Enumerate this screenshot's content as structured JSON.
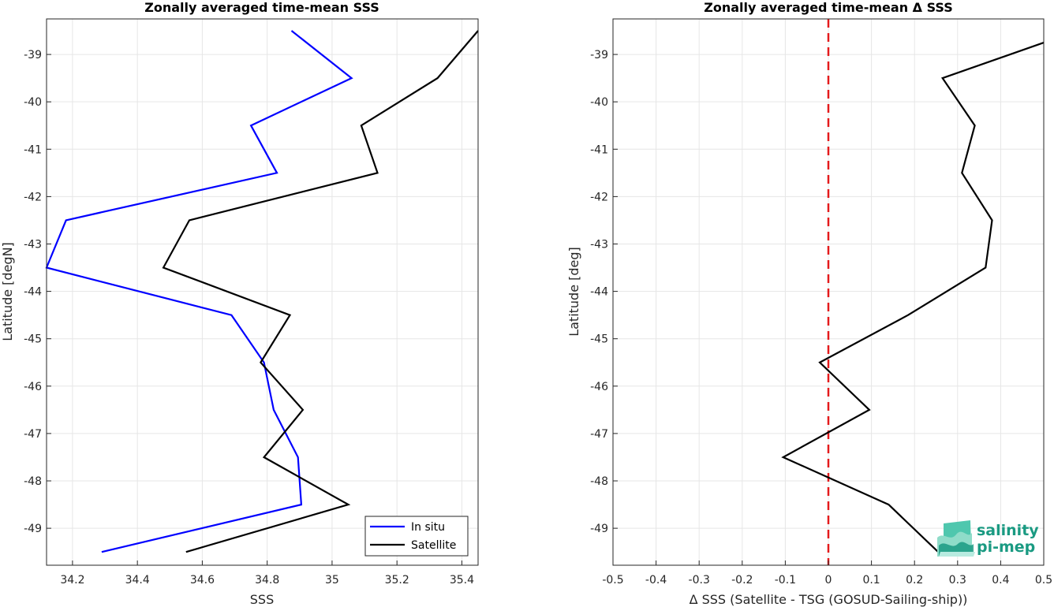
{
  "chart_data": [
    {
      "type": "line",
      "title": "Zonally averaged time-mean SSS",
      "xlabel": "SSS",
      "ylabel": "Latitude [degN]",
      "xlim": [
        34.12,
        35.45
      ],
      "ylim": [
        -49.78,
        -38.25
      ],
      "xticks": [
        "34.2",
        "34.4",
        "34.6",
        "34.8",
        "35",
        "35.2",
        "35.4"
      ],
      "yticks": [
        "-39",
        "-40",
        "-41",
        "-42",
        "-43",
        "-44",
        "-45",
        "-46",
        "-47",
        "-48",
        "-49"
      ],
      "grid": true,
      "legend": "bottom-right",
      "series": [
        {
          "name": "In situ",
          "color": "#0000ff",
          "points": [
            {
              "x": 34.875,
              "y": -38.5
            },
            {
              "x": 35.06,
              "y": -39.5
            },
            {
              "x": 34.75,
              "y": -40.5
            },
            {
              "x": 34.83,
              "y": -41.5
            },
            {
              "x": 34.18,
              "y": -42.5
            },
            {
              "x": 34.12,
              "y": -43.5
            },
            {
              "x": 34.69,
              "y": -44.5
            },
            {
              "x": 34.79,
              "y": -45.5
            },
            {
              "x": 34.82,
              "y": -46.5
            },
            {
              "x": 34.895,
              "y": -47.5
            },
            {
              "x": 34.905,
              "y": -48.5
            },
            {
              "x": 34.29,
              "y": -49.5
            }
          ]
        },
        {
          "name": "Satellite",
          "color": "#000000",
          "points": [
            {
              "x": 35.45,
              "y": -38.5
            },
            {
              "x": 35.325,
              "y": -39.5
            },
            {
              "x": 35.09,
              "y": -40.5
            },
            {
              "x": 35.14,
              "y": -41.5
            },
            {
              "x": 34.56,
              "y": -42.5
            },
            {
              "x": 34.48,
              "y": -43.5
            },
            {
              "x": 34.87,
              "y": -44.5
            },
            {
              "x": 34.78,
              "y": -45.5
            },
            {
              "x": 34.91,
              "y": -46.5
            },
            {
              "x": 34.79,
              "y": -47.5
            },
            {
              "x": 35.05,
              "y": -48.5
            },
            {
              "x": 34.55,
              "y": -49.5
            }
          ]
        }
      ]
    },
    {
      "type": "line",
      "title": "Zonally averaged time-mean Δ SSS",
      "xlabel": "Δ SSS (Satellite - TSG (GOSUD-Sailing-ship))",
      "ylabel": "Latitude [deg]",
      "xlim": [
        -0.5,
        0.5
      ],
      "ylim": [
        -49.78,
        -38.25
      ],
      "xticks": [
        "-0.5",
        "-0.4",
        "-0.3",
        "-0.2",
        "-0.1",
        "0",
        "0.1",
        "0.2",
        "0.3",
        "0.4",
        "0.5"
      ],
      "yticks": [
        "-39",
        "-40",
        "-41",
        "-42",
        "-43",
        "-44",
        "-45",
        "-46",
        "-47",
        "-48",
        "-49"
      ],
      "grid": true,
      "reference_line": {
        "x": 0,
        "color": "#e41a1c",
        "style": "dashed"
      },
      "series": [
        {
          "color": "#000000",
          "points": [
            {
              "x": 0.5,
              "y": -38.75
            },
            {
              "x": 0.265,
              "y": -39.5
            },
            {
              "x": 0.34,
              "y": -40.5
            },
            {
              "x": 0.31,
              "y": -41.5
            },
            {
              "x": 0.38,
              "y": -42.5
            },
            {
              "x": 0.365,
              "y": -43.5
            },
            {
              "x": 0.185,
              "y": -44.5
            },
            {
              "x": -0.02,
              "y": -45.5
            },
            {
              "x": 0.095,
              "y": -46.5
            },
            {
              "x": -0.105,
              "y": -47.5
            },
            {
              "x": 0.14,
              "y": -48.5
            },
            {
              "x": 0.255,
              "y": -49.5
            }
          ]
        }
      ]
    }
  ],
  "logo": {
    "line1": "salinity",
    "line2": "pi-mep",
    "color": "#1a9a82"
  }
}
